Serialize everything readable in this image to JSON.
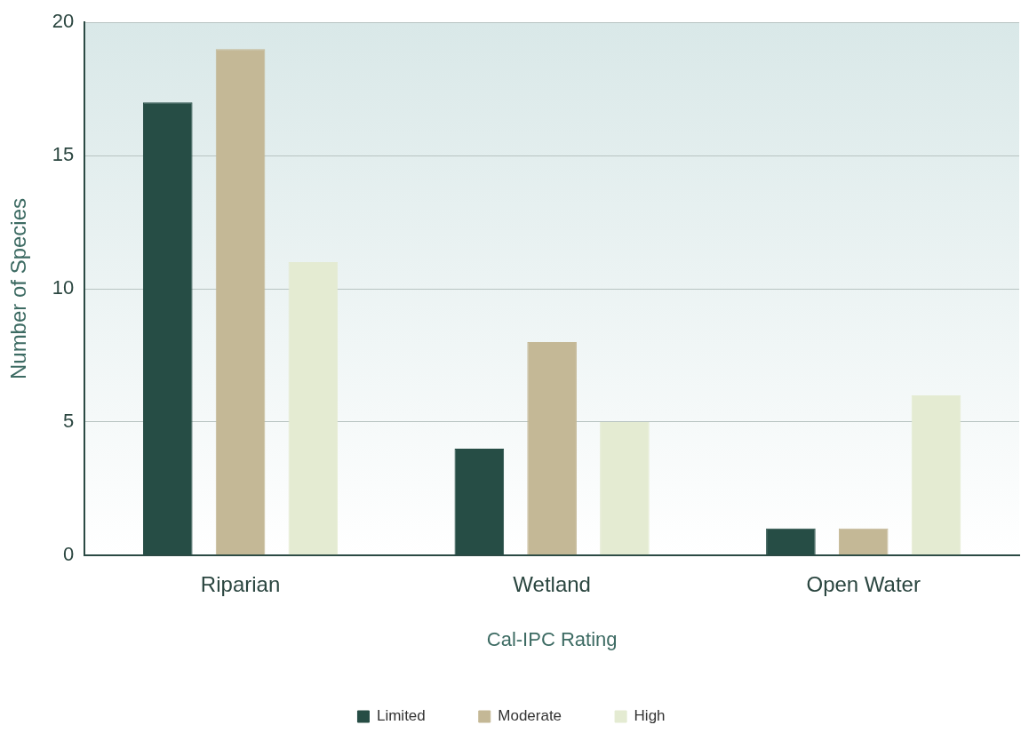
{
  "chart_data": {
    "type": "bar",
    "xlabel": "Cal-IPC Rating",
    "ylabel": "Number of Species",
    "categories": [
      "Riparian",
      "Wetland",
      "Open Water"
    ],
    "series": [
      {
        "name": "Limited",
        "color": "#264d45",
        "values": [
          17,
          4,
          1
        ]
      },
      {
        "name": "Moderate",
        "color": "#c4b896",
        "values": [
          19,
          8,
          1
        ]
      },
      {
        "name": "High",
        "color": "#e4ebd2",
        "values": [
          11,
          5,
          6
        ]
      }
    ],
    "ylim": [
      0,
      20
    ],
    "yticks": [
      0,
      5,
      10,
      15,
      20
    ],
    "grid": "y",
    "legend": "bottom"
  }
}
